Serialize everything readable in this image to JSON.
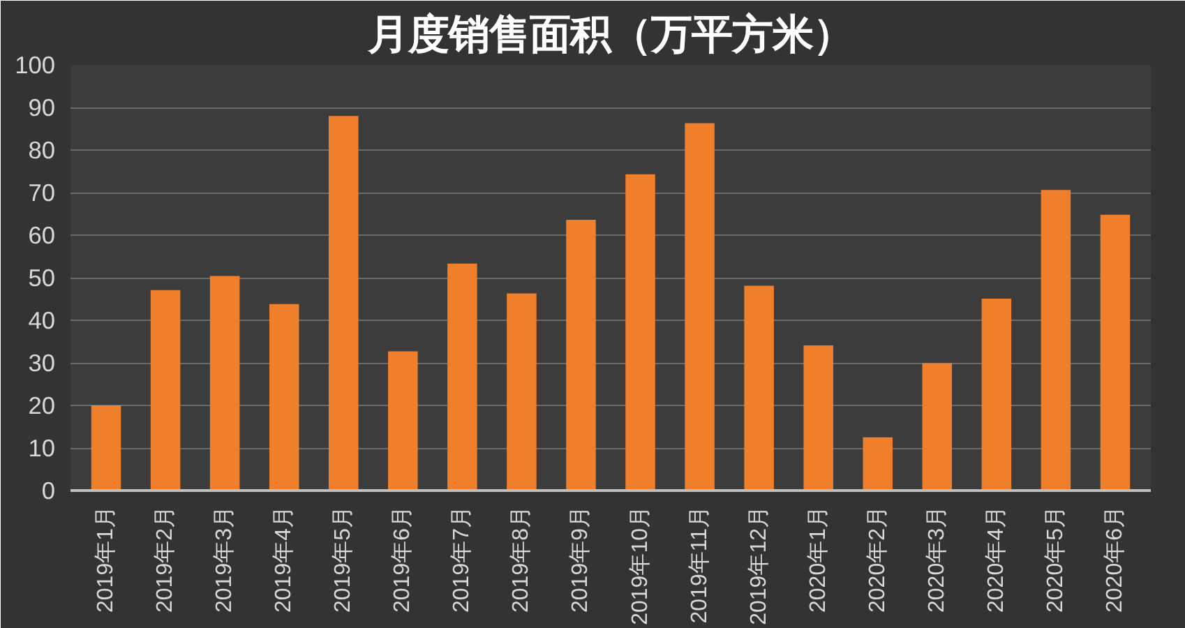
{
  "chart_data": {
    "type": "bar",
    "title": "月度销售面积（万平方米）",
    "categories": [
      "2019年1月",
      "2019年2月",
      "2019年3月",
      "2019年4月",
      "2019年5月",
      "2019年6月",
      "2019年7月",
      "2019年8月",
      "2019年9月",
      "2019年10月",
      "2019年11月",
      "2019年12月",
      "2020年1月",
      "2020年2月",
      "2020年3月",
      "2020年4月",
      "2020年5月",
      "2020年6月"
    ],
    "values": [
      20,
      47.1,
      50.4,
      43.8,
      88,
      32.7,
      53.3,
      46.3,
      63.6,
      74.3,
      86.3,
      48.1,
      34.1,
      12.5,
      29.9,
      45.1,
      70.6,
      64.8
    ],
    "color": "#f07f2c",
    "ylim": [
      0,
      100
    ],
    "yticks": [
      0,
      10,
      20,
      30,
      40,
      50,
      60,
      70,
      80,
      90,
      100
    ],
    "grid": "y"
  }
}
